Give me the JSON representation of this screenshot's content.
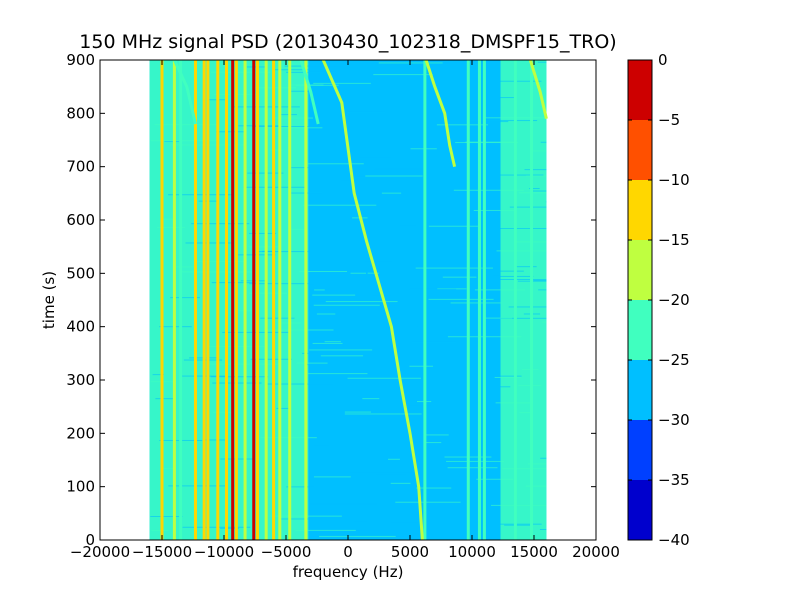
{
  "chart_data": {
    "type": "heatmap",
    "title": "150 MHz signal PSD (20130430_102318_DMSPF15_TRO)",
    "xlabel": "frequency (Hz)",
    "ylabel": "time (s)",
    "xlim": [
      -20000,
      20000
    ],
    "ylim": [
      0,
      900
    ],
    "x_ticks": [
      -20000,
      -15000,
      -10000,
      -5000,
      0,
      5000,
      10000,
      15000,
      20000
    ],
    "x_tick_labels": [
      "−20000",
      "−15000",
      "−10000",
      "−5000",
      "0",
      "5000",
      "10000",
      "15000",
      "20000"
    ],
    "y_ticks": [
      0,
      100,
      200,
      300,
      400,
      500,
      600,
      700,
      800,
      900
    ],
    "y_tick_labels": [
      "0",
      "100",
      "200",
      "300",
      "400",
      "500",
      "600",
      "700",
      "800",
      "900"
    ],
    "data_extent_x": [
      -16000,
      16000
    ],
    "data_extent_y": [
      0,
      900
    ],
    "colorbar": {
      "range": [
        -40,
        0
      ],
      "levels": [
        -40,
        -35,
        -30,
        -25,
        -20,
        -15,
        -10,
        -5,
        0
      ],
      "tick_labels": [
        "−40",
        "−35",
        "−30",
        "−25",
        "−20",
        "−15",
        "−10",
        "−5",
        "0"
      ],
      "colors": [
        "#0000cd",
        "#0040ff",
        "#00bfff",
        "#40ffbf",
        "#bfff40",
        "#ffd700",
        "#ff5000",
        "#cd0000"
      ]
    },
    "background_level_color": "#00bfff",
    "side_band_color": "#40ffbf",
    "side_bands": [
      {
        "from": -16000,
        "to": -3200
      },
      {
        "from": 12300,
        "to": 16000
      }
    ],
    "vertical_lines": [
      {
        "freq": -15000,
        "color": "#ffd700"
      },
      {
        "freq": -14000,
        "color": "#bfff40"
      },
      {
        "freq": -13500,
        "color": "#40ffbf"
      },
      {
        "freq": -12300,
        "color": "#ffd700"
      },
      {
        "freq": -11600,
        "color": "#ffd700"
      },
      {
        "freq": -11300,
        "color": "#ffd700"
      },
      {
        "freq": -10500,
        "color": "#ffd700"
      },
      {
        "freq": -9800,
        "color": "#ffd700"
      },
      {
        "freq": -9300,
        "color": "#cd0000"
      },
      {
        "freq": -9000,
        "color": "#ffd700"
      },
      {
        "freq": -8300,
        "color": "#bfff40"
      },
      {
        "freq": -7600,
        "color": "#cd0000"
      },
      {
        "freq": -7300,
        "color": "#ffd700"
      },
      {
        "freq": -6600,
        "color": "#bfff40"
      },
      {
        "freq": -6000,
        "color": "#ffd700"
      },
      {
        "freq": -5500,
        "color": "#bfff40"
      },
      {
        "freq": -4700,
        "color": "#bfff40"
      },
      {
        "freq": -3400,
        "color": "#bfff40"
      },
      {
        "freq": 6200,
        "color": "#40ffbf"
      },
      {
        "freq": 9700,
        "color": "#40ffbf"
      },
      {
        "freq": 10600,
        "color": "#40ffbf"
      },
      {
        "freq": 11000,
        "color": "#40ffbf"
      },
      {
        "freq": 13500,
        "color": "#40ffbf"
      },
      {
        "freq": 14800,
        "color": "#40ffbf"
      }
    ],
    "curved_traces": [
      {
        "color": "#bfff40",
        "points": [
          [
            -2000,
            900
          ],
          [
            -500,
            820
          ],
          [
            500,
            650
          ],
          [
            1500,
            560
          ],
          [
            2500,
            480
          ],
          [
            3500,
            400
          ],
          [
            4200,
            300
          ],
          [
            5000,
            200
          ],
          [
            5700,
            100
          ],
          [
            6000,
            0
          ]
        ]
      },
      {
        "color": "#bfff40",
        "points": [
          [
            6300,
            900
          ],
          [
            7000,
            850
          ],
          [
            7800,
            800
          ],
          [
            8200,
            740
          ],
          [
            8600,
            700
          ]
        ]
      },
      {
        "color": "#40ffbf",
        "points": [
          [
            -14000,
            900
          ],
          [
            -13000,
            850
          ],
          [
            -12300,
            780
          ]
        ]
      },
      {
        "color": "#40ffbf",
        "points": [
          [
            -3800,
            900
          ],
          [
            -3000,
            840
          ],
          [
            -2400,
            780
          ]
        ]
      },
      {
        "color": "#bfff40",
        "points": [
          [
            14700,
            900
          ],
          [
            15500,
            840
          ],
          [
            16000,
            790
          ]
        ]
      }
    ]
  }
}
